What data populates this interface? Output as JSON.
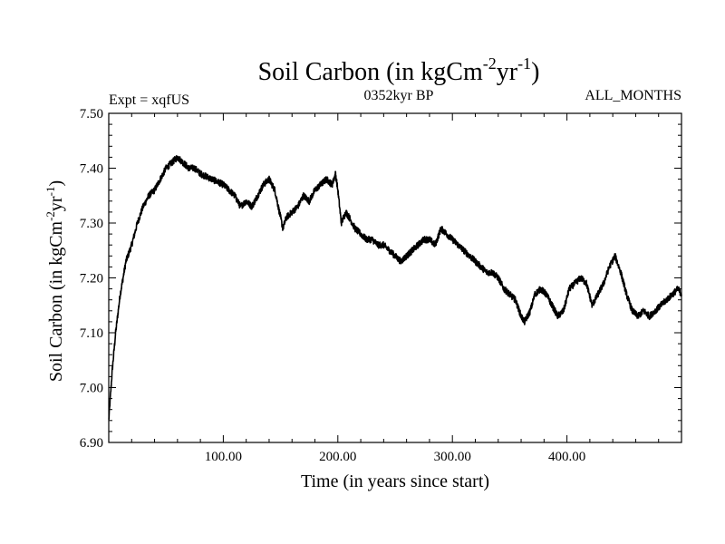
{
  "chart_data": {
    "type": "line",
    "title": "Soil Carbon (in kgCm",
    "title_sup1": "-2",
    "title_mid": "yr",
    "title_sup2": "-1",
    "title_end": ")",
    "subtitle_left": "Expt = xqfUS",
    "subtitle_center": "0352kyr BP",
    "subtitle_right": "ALL_MONTHS",
    "xlabel": "Time (in years since start)",
    "ylabel": "Soil Carbon (in kgCm",
    "ylabel_sup1": "-2",
    "ylabel_mid": "yr",
    "ylabel_sup2": "-1",
    "ylabel_end": ")",
    "xlim": [
      0,
      500
    ],
    "ylim": [
      6.9,
      7.5
    ],
    "x_ticks": [
      100,
      200,
      300,
      400
    ],
    "x_tick_labels": [
      "100.00",
      "200.00",
      "300.00",
      "400.00"
    ],
    "y_ticks": [
      6.9,
      7.0,
      7.1,
      7.2,
      7.3,
      7.4,
      7.5
    ],
    "y_tick_labels": [
      "6.90",
      "7.00",
      "7.10",
      "7.20",
      "7.30",
      "7.40",
      "7.50"
    ],
    "line_color": "#000000",
    "series": [
      {
        "name": "Soil Carbon",
        "x": [
          0,
          3,
          6,
          10,
          15,
          20,
          25,
          30,
          35,
          40,
          45,
          50,
          55,
          60,
          65,
          70,
          75,
          80,
          90,
          100,
          110,
          115,
          120,
          125,
          130,
          135,
          140,
          145,
          150,
          152,
          155,
          160,
          165,
          170,
          175,
          180,
          185,
          190,
          195,
          198,
          200,
          203,
          207,
          210,
          215,
          220,
          225,
          230,
          235,
          240,
          245,
          250,
          255,
          260,
          265,
          270,
          275,
          280,
          285,
          290,
          295,
          300,
          305,
          310,
          315,
          320,
          325,
          330,
          335,
          340,
          345,
          350,
          355,
          360,
          363,
          368,
          372,
          377,
          382,
          387,
          392,
          397,
          402,
          407,
          412,
          417,
          422,
          427,
          432,
          437,
          442,
          447,
          452,
          457,
          462,
          467,
          472,
          477,
          482,
          487,
          492,
          497,
          500
        ],
        "values": [
          6.94,
          7.03,
          7.1,
          7.17,
          7.23,
          7.26,
          7.3,
          7.33,
          7.35,
          7.36,
          7.38,
          7.4,
          7.41,
          7.42,
          7.41,
          7.4,
          7.4,
          7.39,
          7.38,
          7.37,
          7.35,
          7.33,
          7.34,
          7.33,
          7.35,
          7.37,
          7.38,
          7.36,
          7.31,
          7.29,
          7.31,
          7.32,
          7.33,
          7.35,
          7.34,
          7.36,
          7.37,
          7.38,
          7.37,
          7.39,
          7.36,
          7.3,
          7.32,
          7.31,
          7.29,
          7.28,
          7.27,
          7.27,
          7.26,
          7.26,
          7.25,
          7.24,
          7.23,
          7.24,
          7.25,
          7.26,
          7.27,
          7.27,
          7.26,
          7.29,
          7.28,
          7.27,
          7.26,
          7.25,
          7.24,
          7.23,
          7.22,
          7.21,
          7.21,
          7.2,
          7.18,
          7.17,
          7.16,
          7.13,
          7.12,
          7.14,
          7.17,
          7.18,
          7.17,
          7.15,
          7.13,
          7.14,
          7.18,
          7.19,
          7.2,
          7.19,
          7.15,
          7.17,
          7.19,
          7.22,
          7.24,
          7.21,
          7.17,
          7.14,
          7.13,
          7.14,
          7.13,
          7.14,
          7.15,
          7.16,
          7.17,
          7.18,
          7.17
        ]
      }
    ]
  }
}
